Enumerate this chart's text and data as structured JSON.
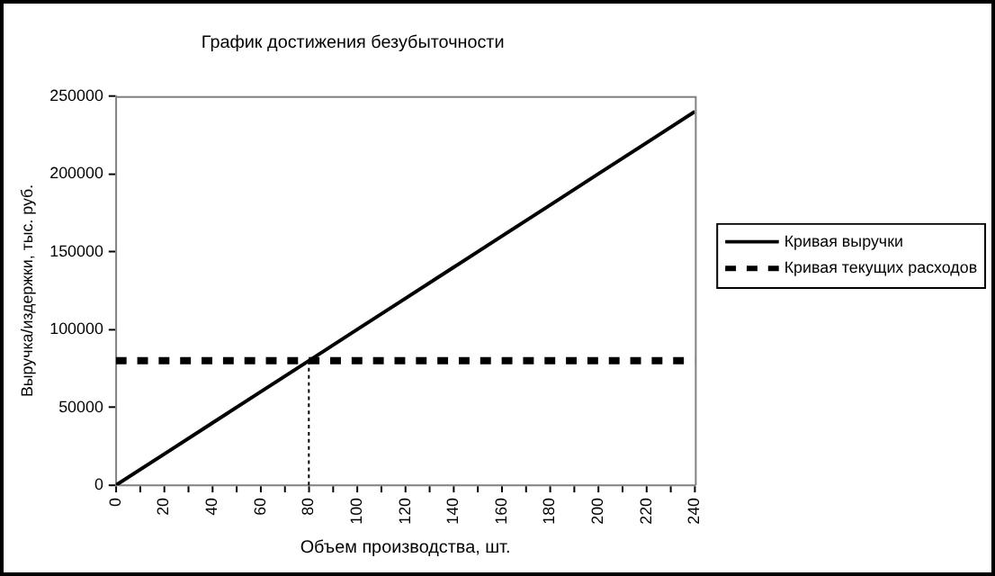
{
  "chart_data": {
    "type": "line",
    "title": "График достижения безубыточности",
    "xlabel": "Объем производства, шт.",
    "ylabel": "Выручка/издержки, тыс. руб.",
    "x": [
      0,
      20,
      40,
      60,
      80,
      100,
      120,
      140,
      160,
      180,
      200,
      220,
      240
    ],
    "series": [
      {
        "name": "Кривая выручки",
        "color": "#000000",
        "line_style": "solid",
        "values": [
          0,
          20000,
          40000,
          60000,
          80000,
          100000,
          120000,
          140000,
          160000,
          180000,
          200000,
          220000,
          240000
        ]
      },
      {
        "name": "Кривая текущих расходов",
        "color": "#000000",
        "line_style": "dashed",
        "values": [
          80000,
          80000,
          80000,
          80000,
          80000,
          80000,
          80000,
          80000,
          80000,
          80000,
          80000,
          80000,
          80000
        ]
      },
      {
        "color": "#000000",
        "line_style": "dotted",
        "x": [
          80,
          80
        ],
        "values": [
          0,
          80000
        ]
      }
    ],
    "xlim": [
      0,
      240
    ],
    "xticks": [
      0,
      {
        "value": 10,
        "label": null
      },
      20,
      {
        "value": 30,
        "label": null
      },
      40,
      {
        "value": 50,
        "label": null
      },
      60,
      {
        "value": 70,
        "label": null
      },
      80,
      {
        "value": 90,
        "label": null
      },
      100,
      {
        "value": 110,
        "label": null
      },
      120,
      {
        "value": 130,
        "label": null
      },
      140,
      {
        "value": 150,
        "label": null
      },
      160,
      {
        "value": 170,
        "label": null
      },
      180,
      {
        "value": 190,
        "label": null
      },
      200,
      {
        "value": 210,
        "label": null
      },
      220,
      {
        "value": 230,
        "label": null
      },
      240
    ],
    "ylim": [
      0,
      250000
    ],
    "yticks": [
      0,
      50000,
      100000,
      150000,
      200000,
      250000
    ],
    "grid": false,
    "legend": "right",
    "marker": "none"
  }
}
